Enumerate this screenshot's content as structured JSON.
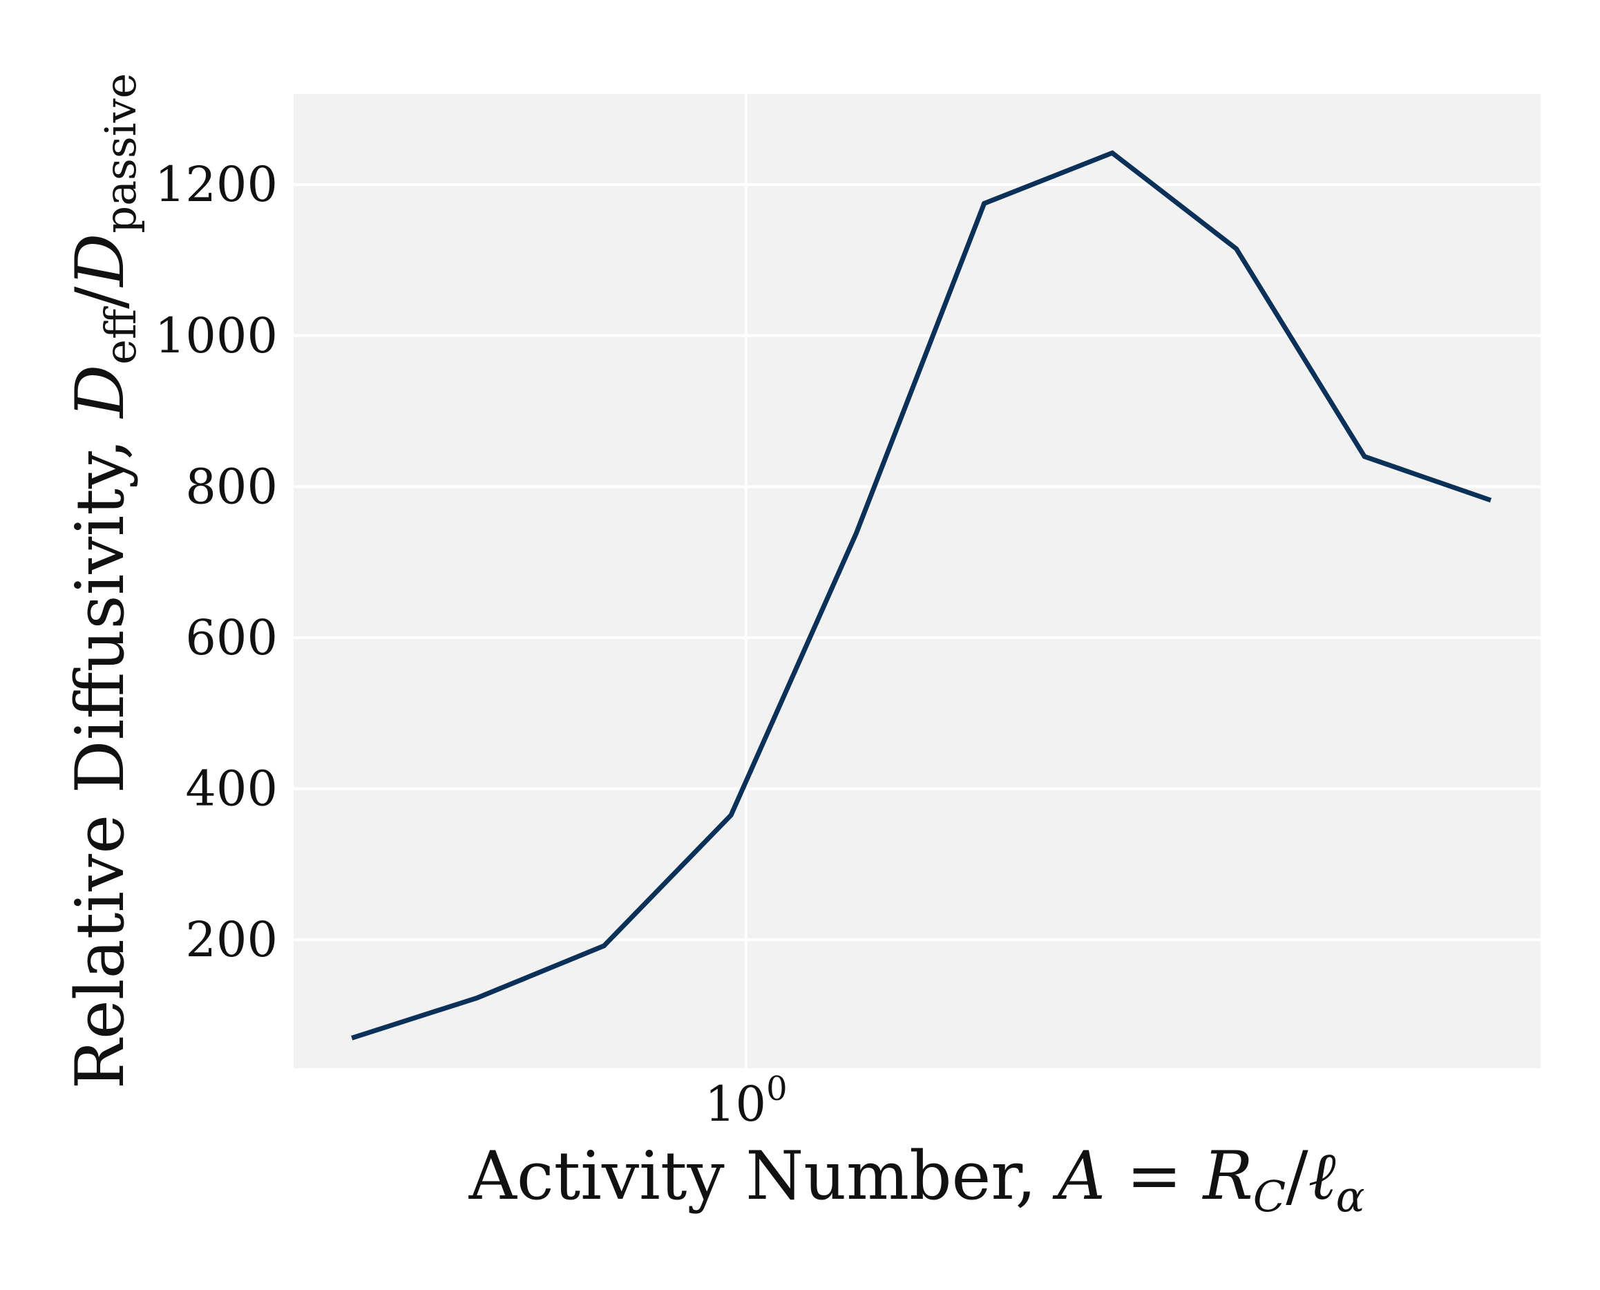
{
  "chart_data": {
    "type": "line",
    "xscale": "log",
    "xlabel": {
      "text": "Activity Number, ",
      "math": "A",
      "eq": " = ",
      "rc": "R",
      "rc_sub": "C",
      "slash": "/",
      "ell": "ℓ",
      "ell_sub": "α"
    },
    "ylabel": {
      "text": "Relative Diffusivity, ",
      "d1": "D",
      "d1_sub": "eff",
      "slash": "/",
      "d2": "D",
      "d2_sub": "passive"
    },
    "x_ticks": [
      {
        "value": 1,
        "base": "10",
        "exp": "0"
      }
    ],
    "y_ticks": [
      200,
      400,
      600,
      800,
      1000,
      1200
    ],
    "xlim": [
      0.4,
      5.0
    ],
    "ylim": [
      30,
      1320
    ],
    "grid": true,
    "series": [
      {
        "color": "#0b3158",
        "x": [
          0.45,
          0.58,
          0.75,
          0.97,
          1.25,
          1.62,
          2.1,
          2.7,
          3.5,
          4.52
        ],
        "y": [
          70,
          123,
          192,
          365,
          738,
          1175,
          1242,
          1115,
          840,
          782
        ]
      }
    ]
  }
}
